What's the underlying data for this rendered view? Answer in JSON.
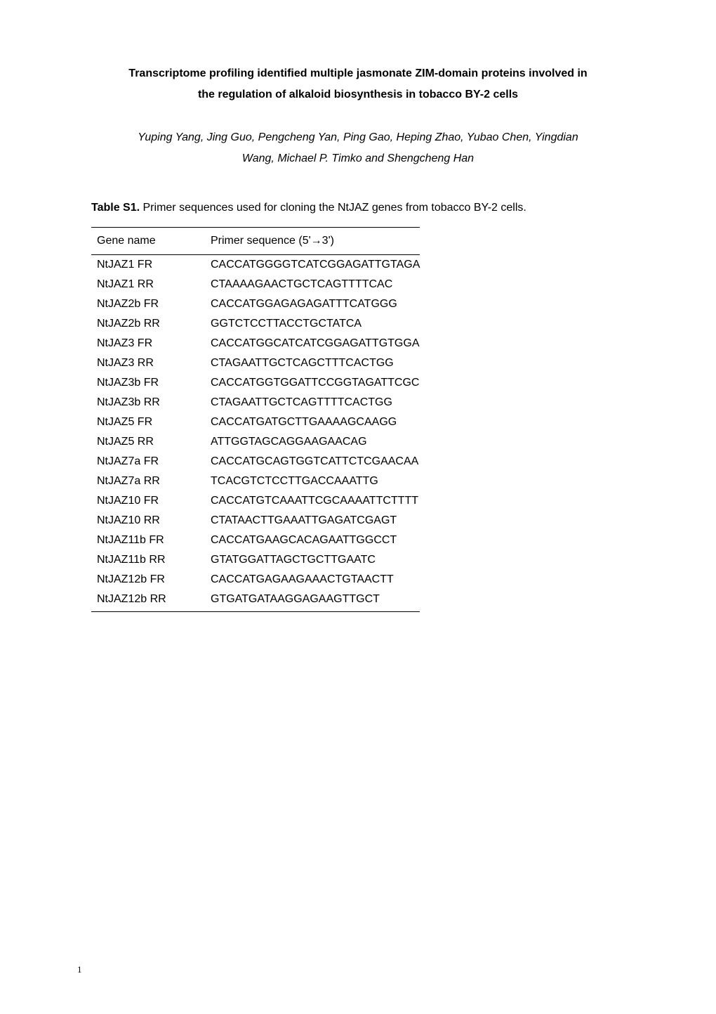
{
  "title_line1": "Transcriptome profiling identified multiple jasmonate ZIM-domain proteins involved in",
  "title_line2": "the regulation of alkaloid biosynthesis in tobacco BY-2 cells",
  "authors_line1": "Yuping Yang, Jing Guo, Pengcheng Yan, Ping Gao, Heping Zhao, Yubao Chen, Yingdian",
  "authors_line2": "Wang, Michael P. Timko and Shengcheng Han",
  "table_label": "Table S1.",
  "table_caption": " Primer sequences used for cloning the NtJAZ genes from tobacco BY-2 cells.",
  "columns": {
    "col1": "Gene name",
    "col2": "Primer sequence (5'→3')"
  },
  "rows": [
    {
      "name": "NtJAZ1 FR",
      "seq": "CACCATGGGGTCATCGGAGATTGTAGA"
    },
    {
      "name": "NtJAZ1 RR",
      "seq": "CTAAAAGAACTGCTCAGTTTTCAC"
    },
    {
      "name": "NtJAZ2b FR",
      "seq": "CACCATGGAGAGAGATTTCATGGG"
    },
    {
      "name": "NtJAZ2b RR",
      "seq": "GGTCTCCTTACCTGCTATCA"
    },
    {
      "name": "NtJAZ3 FR",
      "seq": "CACCATGGCATCATCGGAGATTGTGGA"
    },
    {
      "name": "NtJAZ3 RR",
      "seq": "CTAGAATTGCTCAGCTTTCACTGG"
    },
    {
      "name": "NtJAZ3b FR",
      "seq": "CACCATGGTGGATTCCGGTAGATTCGC"
    },
    {
      "name": "NtJAZ3b RR",
      "seq": "CTAGAATTGCTCAGTTTTCACTGG"
    },
    {
      "name": "NtJAZ5 FR",
      "seq": "CACCATGATGCTTGAAAAGCAAGG"
    },
    {
      "name": "NtJAZ5 RR",
      "seq": "ATTGGTAGCAGGAAGAACAG"
    },
    {
      "name": "NtJAZ7a FR",
      "seq": "CACCATGCAGTGGTCATTCTCGAACAA"
    },
    {
      "name": "NtJAZ7a RR",
      "seq": "TCACGTCTCCTTGACCAAATTG"
    },
    {
      "name": "NtJAZ10 FR",
      "seq": "CACCATGTCAAATTCGCAAAATTCTTTT"
    },
    {
      "name": "NtJAZ10 RR",
      "seq": "CTATAACTTGAAATTGAGATCGAGT"
    },
    {
      "name": "NtJAZ11b FR",
      "seq": "CACCATGAAGCACAGAATTGGCCT"
    },
    {
      "name": "NtJAZ11b RR",
      "seq": "GTATGGATTAGCTGCTTGAATC"
    },
    {
      "name": "NtJAZ12b FR",
      "seq": "CACCATGAGAAGAAACTGTAACTT"
    },
    {
      "name": "NtJAZ12b RR",
      "seq": "GTGATGATAAGGAGAAGTTGCT"
    }
  ],
  "page_number": "1"
}
